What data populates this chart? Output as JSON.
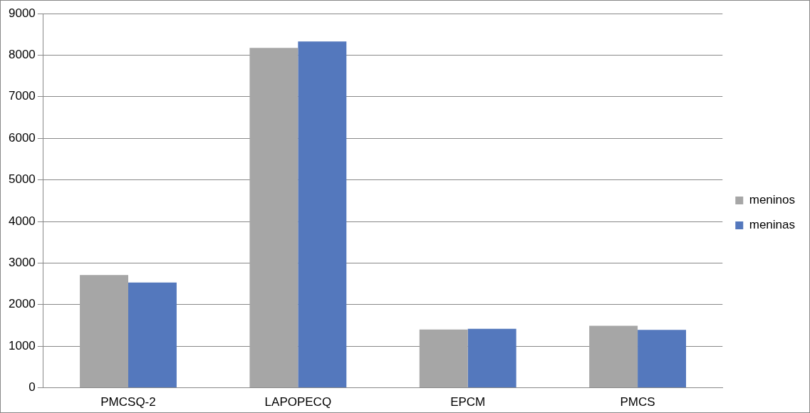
{
  "chart_data": {
    "type": "bar",
    "categories": [
      "PMCSQ-2",
      "LAPOPECQ",
      "EPCM",
      "PMCS"
    ],
    "series": [
      {
        "name": "meninos",
        "color": "#a6a6a6",
        "values": [
          2710,
          8175,
          1400,
          1490
        ]
      },
      {
        "name": "meninas",
        "color": "#5478bd",
        "values": [
          2530,
          8330,
          1420,
          1395
        ]
      }
    ],
    "ylim": [
      0,
      9000
    ],
    "yticks": [
      0,
      1000,
      2000,
      3000,
      4000,
      5000,
      6000,
      7000,
      8000,
      9000
    ],
    "grid": "y",
    "legend": "right"
  }
}
